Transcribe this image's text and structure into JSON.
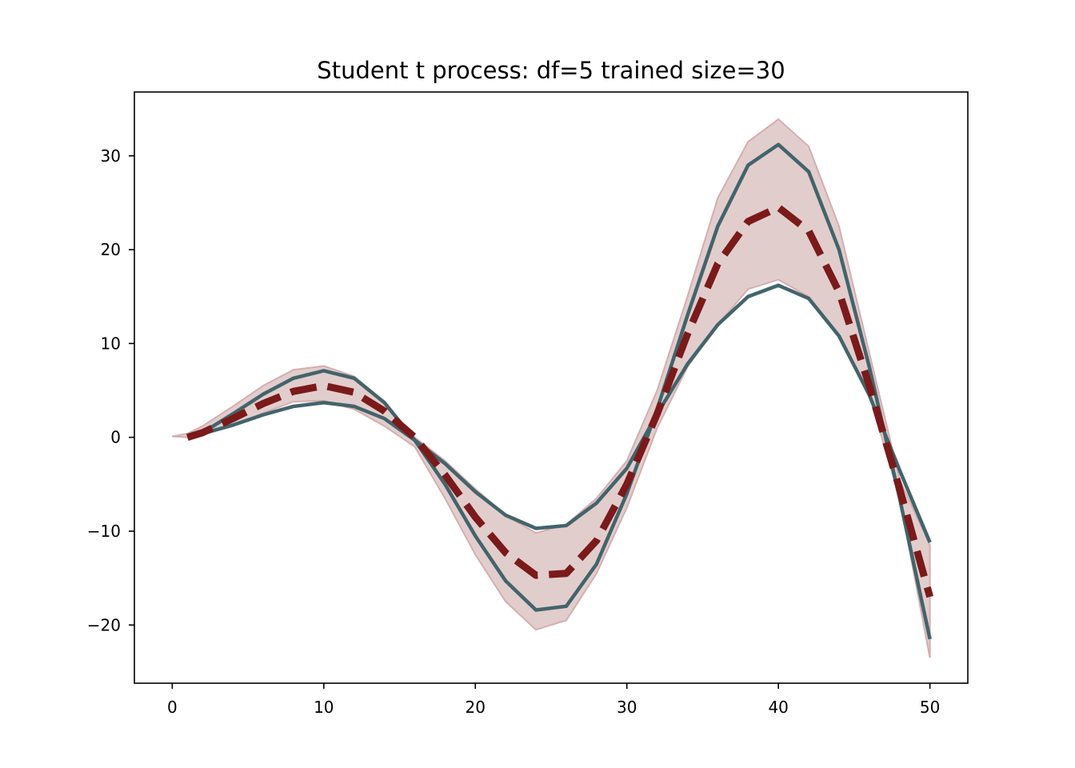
{
  "chart_data": {
    "type": "line",
    "title": "Student t process: df=5 trained size=30",
    "x": [
      0,
      1,
      2,
      4,
      6,
      8,
      10,
      12,
      14,
      16,
      18,
      20,
      22,
      24,
      26,
      28,
      30,
      32,
      34,
      36,
      38,
      40,
      42,
      44,
      46,
      48,
      50
    ],
    "band": {
      "color": "#e2cdcd",
      "edge_color": "#d4aeb0",
      "upper": [
        0.1,
        0.4,
        1.2,
        3.3,
        5.5,
        7.2,
        7.6,
        6.5,
        3.8,
        0,
        -2.5,
        -5.5,
        -8.3,
        -10.2,
        -9.3,
        -6.5,
        -2.5,
        5,
        15,
        25.5,
        31.5,
        33.9,
        31,
        22.5,
        9,
        -4.5,
        -11.5
      ],
      "lower": [
        0.1,
        0,
        0.3,
        1.2,
        2.6,
        3.8,
        3.9,
        3,
        1.2,
        -1,
        -6.5,
        -12.5,
        -17.5,
        -20.5,
        -19.5,
        -14.5,
        -7.5,
        1,
        7.5,
        12,
        15.8,
        16.8,
        15,
        11,
        4.5,
        -6.5,
        -23.5
      ]
    },
    "series": [
      {
        "color": "#43646b",
        "dashed": false,
        "values": [
          null,
          0,
          0.5,
          2.5,
          4.6,
          6.3,
          7.1,
          6.3,
          3.7,
          -0.3,
          -5,
          -10.5,
          -15.3,
          -18.4,
          -18,
          -13.5,
          -6,
          3,
          13,
          22.5,
          29,
          31.2,
          28.3,
          20,
          7.5,
          -6.5,
          -21.5
        ]
      },
      {
        "color": "#43646b",
        "dashed": false,
        "values": [
          null,
          0,
          0.4,
          1.3,
          2.4,
          3.3,
          3.7,
          3.3,
          2,
          -0.3,
          -2.8,
          -5.8,
          -8.3,
          -9.7,
          -9.4,
          -7,
          -3.3,
          2.5,
          7.8,
          12,
          15,
          16.2,
          14.8,
          10.8,
          4.5,
          -3.5,
          -11.2
        ]
      },
      {
        "color": "#7a1a1a",
        "dashed": true,
        "values": [
          null,
          0,
          0.5,
          2,
          3.6,
          4.9,
          5.5,
          4.8,
          2.8,
          0,
          -4,
          -8.5,
          -12.3,
          -14.7,
          -14.5,
          -11,
          -5,
          2.5,
          11,
          18.5,
          23,
          24.5,
          22,
          15.5,
          5.5,
          -5.5,
          -17
        ]
      }
    ],
    "xlim": [
      -2.5,
      52.5
    ],
    "ylim": [
      -26.2,
      36.8
    ],
    "xticks": [
      0,
      10,
      20,
      30,
      40,
      50
    ],
    "yticks": [
      {
        "value": -20,
        "label": "−20"
      },
      {
        "value": -10,
        "label": "−10"
      },
      0,
      10,
      20,
      30
    ],
    "grid": false
  }
}
